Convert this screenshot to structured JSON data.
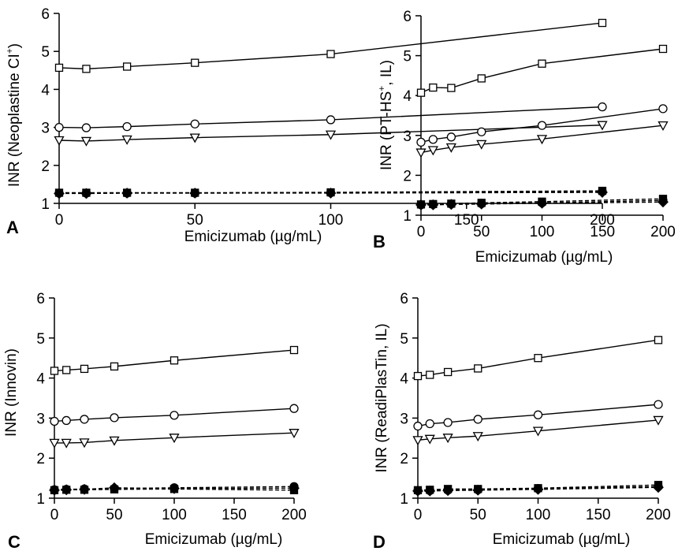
{
  "chart_data": [
    {
      "panel": "A",
      "type": "line",
      "xlabel": "Emicizumab (µg/mL)",
      "ylabel": "INR (Neoplastine CI",
      "ylabel_sup": "+",
      "ylabel_end": ")",
      "xlim": [
        0,
        200
      ],
      "ylim": [
        1,
        6
      ],
      "xticks": [
        0,
        50,
        100,
        150,
        200
      ],
      "yticks": [
        1,
        2,
        3,
        4,
        5,
        6
      ],
      "grid": false,
      "x": [
        0,
        10,
        25,
        50,
        100,
        200
      ],
      "series": [
        {
          "marker": "square-open",
          "line": "solid",
          "values": [
            4.57,
            4.54,
            4.6,
            4.7,
            4.93,
            5.75
          ]
        },
        {
          "marker": "circle-open",
          "line": "solid",
          "values": [
            3.0,
            2.99,
            3.02,
            3.09,
            3.2,
            3.54
          ]
        },
        {
          "marker": "triangle-down-open",
          "line": "solid",
          "values": [
            2.66,
            2.64,
            2.68,
            2.73,
            2.81,
            3.06
          ]
        },
        {
          "marker": "square-filled",
          "line": "dashed",
          "values": [
            1.28,
            1.28,
            1.28,
            1.28,
            1.29,
            1.33
          ]
        },
        {
          "marker": "circle-filled",
          "line": "dashed",
          "values": [
            1.27,
            1.27,
            1.27,
            1.27,
            1.28,
            1.31
          ]
        },
        {
          "marker": "diamond-filled",
          "line": "dashed",
          "values": [
            1.26,
            1.26,
            1.27,
            1.27,
            1.27,
            1.29
          ]
        }
      ]
    },
    {
      "panel": "B",
      "type": "line",
      "xlabel": "Emicizumab (µg/mL)",
      "ylabel": "INR (PT-HS",
      "ylabel_sup": "+",
      "ylabel_end": ", IL)",
      "xlim": [
        0,
        200
      ],
      "ylim": [
        1,
        6
      ],
      "xticks": [
        0,
        50,
        100,
        150,
        200
      ],
      "yticks": [
        1,
        2,
        3,
        4,
        5,
        6
      ],
      "grid": false,
      "x": [
        0,
        10,
        25,
        50,
        100,
        200
      ],
      "series": [
        {
          "marker": "square-open",
          "line": "solid",
          "values": [
            4.07,
            4.2,
            4.19,
            4.43,
            4.8,
            5.17
          ]
        },
        {
          "marker": "circle-open",
          "line": "solid",
          "values": [
            2.83,
            2.9,
            2.96,
            3.09,
            3.25,
            3.67
          ]
        },
        {
          "marker": "triangle-down-open",
          "line": "solid",
          "values": [
            2.57,
            2.63,
            2.7,
            2.78,
            2.91,
            3.25
          ]
        },
        {
          "marker": "square-filled",
          "line": "dashed",
          "values": [
            1.27,
            1.28,
            1.29,
            1.31,
            1.34,
            1.41
          ]
        },
        {
          "marker": "circle-filled",
          "line": "dashed",
          "values": [
            1.26,
            1.27,
            1.28,
            1.29,
            1.31,
            1.37
          ]
        },
        {
          "marker": "diamond-filled",
          "line": "dashed",
          "values": [
            1.26,
            1.26,
            1.27,
            1.28,
            1.3,
            1.33
          ]
        }
      ]
    },
    {
      "panel": "C",
      "type": "line",
      "xlabel": "Emicizumab (µg/mL)",
      "ylabel": "INR (Innovin)",
      "ylabel_sup": "",
      "ylabel_end": "",
      "xlim": [
        0,
        200
      ],
      "ylim": [
        1,
        6
      ],
      "xticks": [
        0,
        50,
        100,
        150,
        200
      ],
      "yticks": [
        1,
        2,
        3,
        4,
        5,
        6
      ],
      "grid": false,
      "x": [
        0,
        10,
        25,
        50,
        100,
        200
      ],
      "series": [
        {
          "marker": "square-open",
          "line": "solid",
          "values": [
            4.18,
            4.2,
            4.23,
            4.29,
            4.44,
            4.7
          ]
        },
        {
          "marker": "circle-open",
          "line": "solid",
          "values": [
            2.92,
            2.94,
            2.97,
            3.01,
            3.07,
            3.24
          ]
        },
        {
          "marker": "triangle-down-open",
          "line": "solid",
          "values": [
            2.38,
            2.38,
            2.39,
            2.44,
            2.51,
            2.63
          ]
        },
        {
          "marker": "square-filled",
          "line": "dashed",
          "values": [
            1.2,
            1.21,
            1.21,
            1.22,
            1.23,
            1.2
          ]
        },
        {
          "marker": "circle-filled",
          "line": "dashed",
          "values": [
            1.21,
            1.22,
            1.23,
            1.24,
            1.26,
            1.29
          ]
        },
        {
          "marker": "diamond-filled",
          "line": "dashed",
          "values": [
            1.2,
            1.21,
            1.22,
            1.26,
            1.24,
            1.25
          ]
        }
      ]
    },
    {
      "panel": "D",
      "type": "line",
      "xlabel": "Emicizumab (µg/mL)",
      "ylabel": "INR (ReadiPlasTin, IL)",
      "ylabel_sup": "",
      "ylabel_end": "",
      "xlim": [
        0,
        200
      ],
      "ylim": [
        1,
        6
      ],
      "xticks": [
        0,
        50,
        100,
        150,
        200
      ],
      "yticks": [
        1,
        2,
        3,
        4,
        5,
        6
      ],
      "grid": false,
      "x": [
        0,
        10,
        25,
        50,
        100,
        200
      ],
      "series": [
        {
          "marker": "square-open",
          "line": "solid",
          "values": [
            4.05,
            4.08,
            4.15,
            4.24,
            4.5,
            4.95
          ]
        },
        {
          "marker": "circle-open",
          "line": "solid",
          "values": [
            2.8,
            2.86,
            2.89,
            2.97,
            3.08,
            3.34
          ]
        },
        {
          "marker": "triangle-down-open",
          "line": "solid",
          "values": [
            2.45,
            2.48,
            2.51,
            2.55,
            2.68,
            2.95
          ]
        },
        {
          "marker": "square-filled",
          "line": "dashed",
          "values": [
            1.2,
            1.21,
            1.23,
            1.23,
            1.25,
            1.33
          ]
        },
        {
          "marker": "circle-filled",
          "line": "dashed",
          "values": [
            1.19,
            1.19,
            1.2,
            1.21,
            1.24,
            1.29
          ]
        },
        {
          "marker": "diamond-filled",
          "line": "dashed",
          "values": [
            1.18,
            1.18,
            1.19,
            1.2,
            1.22,
            1.27
          ]
        }
      ]
    }
  ]
}
